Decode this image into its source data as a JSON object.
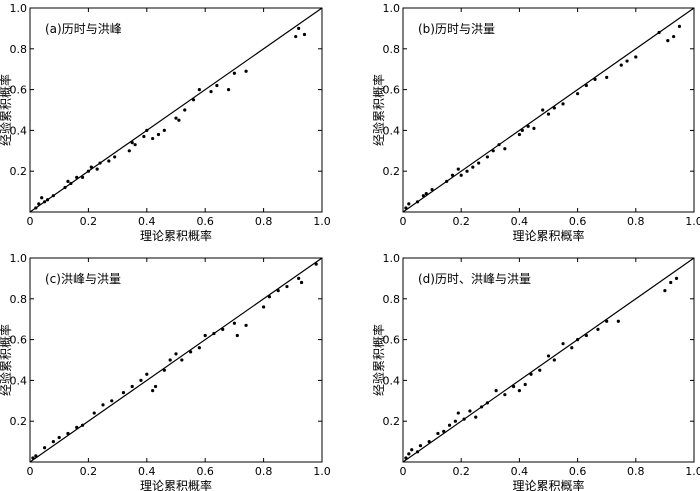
{
  "chart_data": [
    {
      "type": "scatter",
      "title": "(a)历时与洪峰",
      "xlabel": "理论累积概率",
      "ylabel": "经验累积概率",
      "xlim": [
        0,
        1
      ],
      "ylim": [
        0,
        1
      ],
      "xticks": [
        "0",
        "0.2",
        "0.4",
        "0.6",
        "0.8",
        "1.0"
      ],
      "yticks": [
        "0.2",
        "0.4",
        "0.6",
        "0.8",
        "1.0"
      ],
      "reference_line": "y=x",
      "points": [
        [
          0.02,
          0.02
        ],
        [
          0.03,
          0.04
        ],
        [
          0.04,
          0.07
        ],
        [
          0.05,
          0.05
        ],
        [
          0.06,
          0.06
        ],
        [
          0.08,
          0.08
        ],
        [
          0.12,
          0.12
        ],
        [
          0.13,
          0.15
        ],
        [
          0.14,
          0.14
        ],
        [
          0.16,
          0.17
        ],
        [
          0.18,
          0.17
        ],
        [
          0.2,
          0.2
        ],
        [
          0.21,
          0.22
        ],
        [
          0.23,
          0.21
        ],
        [
          0.24,
          0.24
        ],
        [
          0.27,
          0.25
        ],
        [
          0.29,
          0.27
        ],
        [
          0.34,
          0.3
        ],
        [
          0.35,
          0.34
        ],
        [
          0.36,
          0.33
        ],
        [
          0.39,
          0.37
        ],
        [
          0.4,
          0.4
        ],
        [
          0.42,
          0.36
        ],
        [
          0.44,
          0.38
        ],
        [
          0.46,
          0.4
        ],
        [
          0.5,
          0.46
        ],
        [
          0.51,
          0.45
        ],
        [
          0.53,
          0.5
        ],
        [
          0.56,
          0.55
        ],
        [
          0.58,
          0.6
        ],
        [
          0.62,
          0.59
        ],
        [
          0.64,
          0.62
        ],
        [
          0.68,
          0.6
        ],
        [
          0.7,
          0.68
        ],
        [
          0.74,
          0.69
        ],
        [
          0.91,
          0.86
        ],
        [
          0.92,
          0.9
        ],
        [
          0.94,
          0.87
        ]
      ]
    },
    {
      "type": "scatter",
      "title": "(b)历时与洪量",
      "xlabel": "理论累积概率",
      "ylabel": "经验累积概率",
      "xlim": [
        0,
        1
      ],
      "ylim": [
        0,
        1
      ],
      "xticks": [
        "0",
        "0.2",
        "0.4",
        "0.6",
        "0.8",
        "1.0"
      ],
      "yticks": [
        "0.2",
        "0.4",
        "0.6",
        "0.8",
        "1.0"
      ],
      "reference_line": "y=x",
      "points": [
        [
          0.01,
          0.02
        ],
        [
          0.02,
          0.04
        ],
        [
          0.05,
          0.05
        ],
        [
          0.07,
          0.08
        ],
        [
          0.08,
          0.09
        ],
        [
          0.1,
          0.11
        ],
        [
          0.15,
          0.15
        ],
        [
          0.17,
          0.18
        ],
        [
          0.19,
          0.21
        ],
        [
          0.2,
          0.18
        ],
        [
          0.22,
          0.2
        ],
        [
          0.24,
          0.22
        ],
        [
          0.26,
          0.24
        ],
        [
          0.29,
          0.27
        ],
        [
          0.31,
          0.3
        ],
        [
          0.33,
          0.33
        ],
        [
          0.35,
          0.31
        ],
        [
          0.4,
          0.38
        ],
        [
          0.41,
          0.4
        ],
        [
          0.43,
          0.42
        ],
        [
          0.45,
          0.41
        ],
        [
          0.48,
          0.5
        ],
        [
          0.5,
          0.48
        ],
        [
          0.52,
          0.51
        ],
        [
          0.55,
          0.53
        ],
        [
          0.6,
          0.58
        ],
        [
          0.63,
          0.62
        ],
        [
          0.66,
          0.65
        ],
        [
          0.7,
          0.66
        ],
        [
          0.75,
          0.72
        ],
        [
          0.77,
          0.74
        ],
        [
          0.8,
          0.76
        ],
        [
          0.88,
          0.88
        ],
        [
          0.91,
          0.84
        ],
        [
          0.93,
          0.86
        ],
        [
          0.95,
          0.91
        ]
      ]
    },
    {
      "type": "scatter",
      "title": "(c)洪峰与洪量",
      "xlabel": "理论累积概率",
      "ylabel": "经验累积概率",
      "xlim": [
        0,
        1
      ],
      "ylim": [
        0,
        1
      ],
      "xticks": [
        "0",
        "0.2",
        "0.4",
        "0.6",
        "0.8",
        "1.0"
      ],
      "yticks": [
        "0.2",
        "0.4",
        "0.6",
        "0.8",
        "1.0"
      ],
      "reference_line": "y=x",
      "points": [
        [
          0.01,
          0.02
        ],
        [
          0.02,
          0.03
        ],
        [
          0.05,
          0.07
        ],
        [
          0.08,
          0.1
        ],
        [
          0.1,
          0.12
        ],
        [
          0.13,
          0.14
        ],
        [
          0.16,
          0.17
        ],
        [
          0.18,
          0.18
        ],
        [
          0.22,
          0.24
        ],
        [
          0.25,
          0.28
        ],
        [
          0.28,
          0.3
        ],
        [
          0.32,
          0.34
        ],
        [
          0.35,
          0.37
        ],
        [
          0.38,
          0.4
        ],
        [
          0.4,
          0.43
        ],
        [
          0.42,
          0.35
        ],
        [
          0.43,
          0.37
        ],
        [
          0.46,
          0.45
        ],
        [
          0.48,
          0.5
        ],
        [
          0.5,
          0.53
        ],
        [
          0.52,
          0.5
        ],
        [
          0.55,
          0.54
        ],
        [
          0.58,
          0.56
        ],
        [
          0.6,
          0.62
        ],
        [
          0.63,
          0.63
        ],
        [
          0.66,
          0.65
        ],
        [
          0.7,
          0.68
        ],
        [
          0.71,
          0.62
        ],
        [
          0.74,
          0.67
        ],
        [
          0.8,
          0.76
        ],
        [
          0.82,
          0.81
        ],
        [
          0.85,
          0.84
        ],
        [
          0.88,
          0.86
        ],
        [
          0.92,
          0.9
        ],
        [
          0.93,
          0.88
        ],
        [
          0.98,
          0.97
        ]
      ]
    },
    {
      "type": "scatter",
      "title": "(d)历时、洪峰与洪量",
      "xlabel": "理论累积概率",
      "ylabel": "经验累积概率",
      "xlim": [
        0,
        1
      ],
      "ylim": [
        0,
        1
      ],
      "xticks": [
        "0",
        "0.2",
        "0.4",
        "0.6",
        "0.8",
        "1.0"
      ],
      "yticks": [
        "0.2",
        "0.4",
        "0.6",
        "0.8",
        "1.0"
      ],
      "reference_line": "y=x",
      "points": [
        [
          0.01,
          0.02
        ],
        [
          0.02,
          0.04
        ],
        [
          0.03,
          0.06
        ],
        [
          0.05,
          0.05
        ],
        [
          0.06,
          0.08
        ],
        [
          0.09,
          0.1
        ],
        [
          0.12,
          0.14
        ],
        [
          0.14,
          0.15
        ],
        [
          0.16,
          0.18
        ],
        [
          0.18,
          0.2
        ],
        [
          0.19,
          0.24
        ],
        [
          0.21,
          0.21
        ],
        [
          0.23,
          0.25
        ],
        [
          0.25,
          0.22
        ],
        [
          0.27,
          0.27
        ],
        [
          0.29,
          0.29
        ],
        [
          0.32,
          0.35
        ],
        [
          0.35,
          0.33
        ],
        [
          0.38,
          0.37
        ],
        [
          0.4,
          0.35
        ],
        [
          0.42,
          0.38
        ],
        [
          0.44,
          0.43
        ],
        [
          0.47,
          0.45
        ],
        [
          0.5,
          0.52
        ],
        [
          0.52,
          0.5
        ],
        [
          0.55,
          0.58
        ],
        [
          0.58,
          0.56
        ],
        [
          0.6,
          0.6
        ],
        [
          0.63,
          0.62
        ],
        [
          0.67,
          0.65
        ],
        [
          0.7,
          0.69
        ],
        [
          0.74,
          0.69
        ],
        [
          0.9,
          0.84
        ],
        [
          0.92,
          0.88
        ],
        [
          0.94,
          0.9
        ]
      ]
    }
  ]
}
